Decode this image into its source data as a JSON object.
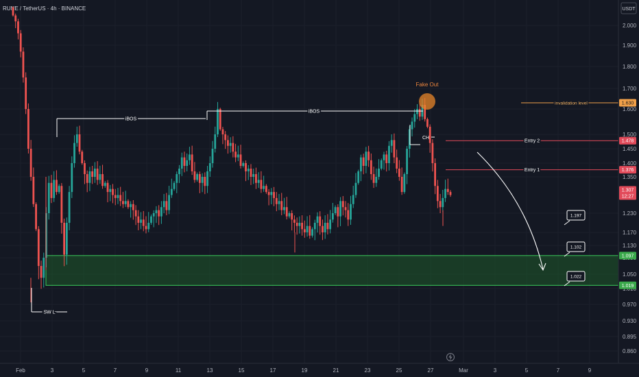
{
  "header": {
    "symbol": "RUNE / TetherUS · 4h · BINANCE"
  },
  "currency_badge": "USDT",
  "colors": {
    "background": "#141823",
    "up": "#26a69a",
    "down": "#ef5350",
    "zone_fill": "#1e5a2a",
    "zone_border": "#3ccf5c",
    "orange": "#f0a049",
    "red_line": "#e24a5a",
    "white": "#ffffff"
  },
  "chart_data": {
    "type": "candlestick",
    "x_tick_labels": [
      "Feb",
      "3",
      "5",
      "7",
      "9",
      "11",
      "13",
      "15",
      "17",
      "19",
      "21",
      "23",
      "25",
      "27",
      "Mar",
      "3",
      "5",
      "7",
      "9"
    ],
    "y_tick_labels": [
      "2.000",
      "1.900",
      "1.800",
      "1.700",
      "1.600",
      "1.500",
      "1.450",
      "1.400",
      "1.350",
      "1.230",
      "1.170",
      "1.130",
      "1.090",
      "1.050",
      "1.010",
      "0.970",
      "0.930",
      "0.895",
      "0.860"
    ],
    "price_closes": [
      2.05,
      2.02,
      1.96,
      1.87,
      1.75,
      1.6,
      1.45,
      1.35,
      1.26,
      1.18,
      1.07,
      1.04,
      1.09,
      1.23,
      1.33,
      1.28,
      1.34,
      1.3,
      1.32,
      1.2,
      1.1,
      1.2,
      1.3,
      1.4,
      1.47,
      1.5,
      1.44,
      1.4,
      1.36,
      1.33,
      1.37,
      1.35,
      1.38,
      1.34,
      1.36,
      1.32,
      1.33,
      1.3,
      1.31,
      1.29,
      1.28,
      1.29,
      1.27,
      1.26,
      1.27,
      1.25,
      1.26,
      1.24,
      1.22,
      1.2,
      1.21,
      1.19,
      1.18,
      1.2,
      1.22,
      1.23,
      1.24,
      1.22,
      1.25,
      1.27,
      1.24,
      1.29,
      1.31,
      1.33,
      1.36,
      1.38,
      1.42,
      1.39,
      1.41,
      1.43,
      1.37,
      1.34,
      1.36,
      1.33,
      1.35,
      1.32,
      1.37,
      1.4,
      1.45,
      1.5,
      1.6,
      1.52,
      1.5,
      1.48,
      1.46,
      1.47,
      1.44,
      1.42,
      1.43,
      1.39,
      1.4,
      1.37,
      1.38,
      1.35,
      1.36,
      1.33,
      1.34,
      1.31,
      1.32,
      1.3,
      1.29,
      1.3,
      1.28,
      1.26,
      1.27,
      1.24,
      1.25,
      1.22,
      1.23,
      1.21,
      1.2,
      1.19,
      1.2,
      1.18,
      1.17,
      1.19,
      1.16,
      1.18,
      1.2,
      1.22,
      1.19,
      1.17,
      1.2,
      1.18,
      1.21,
      1.23,
      1.25,
      1.22,
      1.27,
      1.25,
      1.24,
      1.21,
      1.26,
      1.29,
      1.33,
      1.37,
      1.42,
      1.39,
      1.44,
      1.41,
      1.36,
      1.33,
      1.35,
      1.38,
      1.41,
      1.43,
      1.4,
      1.46,
      1.48,
      1.42,
      1.38,
      1.35,
      1.3,
      1.36,
      1.45,
      1.52,
      1.55,
      1.58,
      1.6,
      1.57,
      1.62,
      1.56,
      1.53,
      1.47,
      1.4,
      1.32,
      1.27,
      1.25,
      1.28,
      1.31,
      1.3,
      1.29
    ],
    "annotations": [
      {
        "label": "iBOS",
        "level": 1.566
      },
      {
        "label": "iBOS",
        "level": 1.594
      },
      {
        "label": "Fake Out"
      },
      {
        "label": "CH"
      },
      {
        "label": "SW L"
      },
      {
        "label": "invalidation level",
        "level": 1.63
      },
      {
        "label": "Entry 2",
        "level": 1.478
      },
      {
        "label": "Entry 1",
        "level": 1.376
      }
    ],
    "targets": [
      "1.197",
      "1.102",
      "1.022"
    ],
    "zone": {
      "top": 1.097,
      "bottom": 1.019
    },
    "price_tags": [
      {
        "value": "1.630",
        "kind": "orange"
      },
      {
        "value": "1.478",
        "kind": "red"
      },
      {
        "value": "1.376",
        "kind": "red"
      },
      {
        "value": "1.307",
        "kind": "red",
        "sub": "12:27"
      },
      {
        "value": "1.097",
        "kind": "green"
      },
      {
        "value": "1.019",
        "kind": "green"
      }
    ]
  }
}
